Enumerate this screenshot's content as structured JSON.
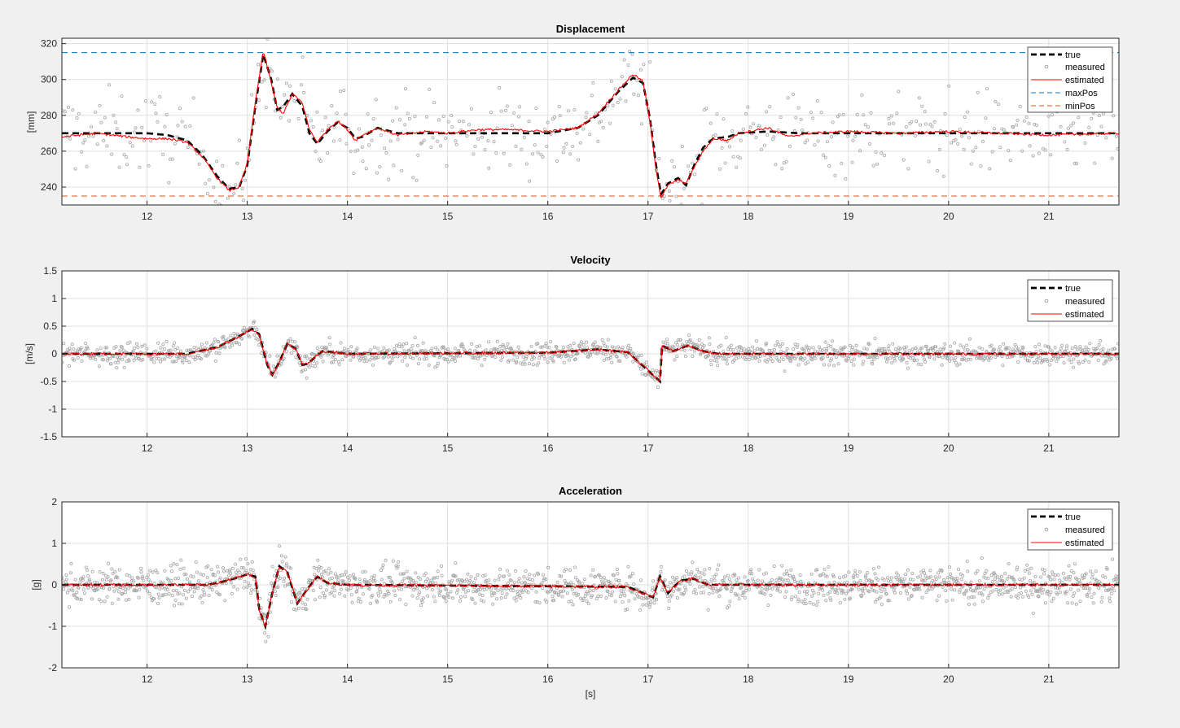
{
  "figure": {
    "background": "#f0f0f0",
    "xlabel": "[s]"
  },
  "colors": {
    "true": "#000000",
    "measured": "#a6a6a6",
    "estimated": "#ff0000",
    "maxPos": "#0072bd",
    "minPos": "#d95319",
    "grid": "#dfdfdf",
    "axes_bg": "#ffffff"
  },
  "chart_data": [
    {
      "type": "line",
      "title": "Displacement",
      "ylabel": "[mm]",
      "xlabel": "",
      "xlim": [
        11.15,
        21.7
      ],
      "ylim": [
        230,
        323
      ],
      "xticks": [
        12,
        13,
        14,
        15,
        16,
        17,
        18,
        19,
        20,
        21
      ],
      "yticks": [
        240,
        260,
        280,
        300,
        320
      ],
      "grid": true,
      "legend": "top-right",
      "legend_entries": [
        "true",
        "measured",
        "estimated",
        "maxPos",
        "minPos"
      ],
      "series": [
        {
          "name": "true",
          "style": "dashed",
          "color": "#000000",
          "points": [
            [
              11.15,
              270
            ],
            [
              12.0,
              270
            ],
            [
              12.2,
              269
            ],
            [
              12.4,
              266
            ],
            [
              12.55,
              258
            ],
            [
              12.7,
              246
            ],
            [
              12.82,
              239
            ],
            [
              12.92,
              240
            ],
            [
              13.0,
              252
            ],
            [
              13.08,
              285
            ],
            [
              13.16,
              314
            ],
            [
              13.24,
              300
            ],
            [
              13.3,
              283
            ],
            [
              13.36,
              285
            ],
            [
              13.45,
              292
            ],
            [
              13.55,
              285
            ],
            [
              13.62,
              270
            ],
            [
              13.7,
              264
            ],
            [
              13.8,
              271
            ],
            [
              13.9,
              276
            ],
            [
              14.0,
              273
            ],
            [
              14.08,
              267
            ],
            [
              14.15,
              268
            ],
            [
              14.3,
              273
            ],
            [
              14.5,
              270
            ],
            [
              15.0,
              270
            ],
            [
              16.0,
              270
            ],
            [
              16.3,
              273
            ],
            [
              16.5,
              280
            ],
            [
              16.7,
              293
            ],
            [
              16.85,
              301
            ],
            [
              16.95,
              298
            ],
            [
              17.02,
              278
            ],
            [
              17.08,
              252
            ],
            [
              17.13,
              236
            ],
            [
              17.2,
              242
            ],
            [
              17.3,
              245
            ],
            [
              17.38,
              241
            ],
            [
              17.46,
              252
            ],
            [
              17.55,
              262
            ],
            [
              17.65,
              267
            ],
            [
              17.8,
              268
            ],
            [
              17.9,
              270
            ],
            [
              18.2,
              271
            ],
            [
              18.5,
              270
            ],
            [
              21.7,
              270
            ]
          ]
        },
        {
          "name": "estimated",
          "style": "solid",
          "color": "#ff0000",
          "points": [
            [
              11.15,
              268
            ],
            [
              11.5,
              270
            ],
            [
              11.8,
              268
            ],
            [
              12.0,
              267
            ],
            [
              12.2,
              267
            ],
            [
              12.4,
              265
            ],
            [
              12.55,
              257
            ],
            [
              12.7,
              245
            ],
            [
              12.82,
              238
            ],
            [
              12.92,
              240
            ],
            [
              13.0,
              253
            ],
            [
              13.08,
              287
            ],
            [
              13.16,
              316
            ],
            [
              13.24,
              298
            ],
            [
              13.3,
              284
            ],
            [
              13.36,
              281
            ],
            [
              13.45,
              292
            ],
            [
              13.55,
              287
            ],
            [
              13.62,
              272
            ],
            [
              13.7,
              265
            ],
            [
              13.8,
              272
            ],
            [
              13.9,
              277
            ],
            [
              14.0,
              272
            ],
            [
              14.08,
              266
            ],
            [
              14.15,
              269
            ],
            [
              14.3,
              273
            ],
            [
              14.5,
              269
            ],
            [
              14.8,
              271
            ],
            [
              15.0,
              270
            ],
            [
              15.3,
              272
            ],
            [
              15.6,
              272
            ],
            [
              16.0,
              271
            ],
            [
              16.3,
              273
            ],
            [
              16.5,
              281
            ],
            [
              16.7,
              294
            ],
            [
              16.85,
              303
            ],
            [
              16.95,
              299
            ],
            [
              17.02,
              276
            ],
            [
              17.08,
              250
            ],
            [
              17.13,
              234
            ],
            [
              17.2,
              241
            ],
            [
              17.3,
              244
            ],
            [
              17.38,
              242
            ],
            [
              17.46,
              251
            ],
            [
              17.55,
              260
            ],
            [
              17.65,
              267
            ],
            [
              17.8,
              266
            ],
            [
              17.9,
              270
            ],
            [
              18.2,
              273
            ],
            [
              18.4,
              268
            ],
            [
              18.6,
              270
            ],
            [
              19.0,
              271
            ],
            [
              19.5,
              270
            ],
            [
              20.0,
              271
            ],
            [
              20.5,
              270
            ],
            [
              21.0,
              269
            ],
            [
              21.7,
              270
            ]
          ]
        },
        {
          "name": "maxPos",
          "style": "dashed",
          "color": "#0072bd",
          "points": [
            [
              11.15,
              315
            ],
            [
              21.7,
              315
            ]
          ]
        },
        {
          "name": "minPos",
          "style": "dashed",
          "color": "#d95319",
          "points": [
            [
              11.15,
              235
            ],
            [
              21.7,
              235
            ]
          ]
        },
        {
          "name": "measured",
          "style": "markers",
          "color": "#a6a6a6",
          "noise": 12,
          "count": 520
        }
      ]
    },
    {
      "type": "line",
      "title": "Velocity",
      "ylabel": "[m/s]",
      "xlabel": "",
      "xlim": [
        11.15,
        21.7
      ],
      "ylim": [
        -1.5,
        1.5
      ],
      "xticks": [
        12,
        13,
        14,
        15,
        16,
        17,
        18,
        19,
        20,
        21
      ],
      "yticks": [
        -1.5,
        -1,
        -0.5,
        0,
        0.5,
        1,
        1.5
      ],
      "grid": true,
      "legend": "top-right",
      "legend_entries": [
        "true",
        "measured",
        "estimated"
      ],
      "series": [
        {
          "name": "true",
          "style": "dashed",
          "color": "#000000",
          "points": [
            [
              11.15,
              0
            ],
            [
              12.4,
              0
            ],
            [
              12.7,
              0.12
            ],
            [
              12.9,
              0.3
            ],
            [
              13.05,
              0.45
            ],
            [
              13.12,
              0.35
            ],
            [
              13.2,
              -0.2
            ],
            [
              13.25,
              -0.38
            ],
            [
              13.32,
              -0.15
            ],
            [
              13.4,
              0.18
            ],
            [
              13.48,
              0.1
            ],
            [
              13.55,
              -0.2
            ],
            [
              13.6,
              -0.18
            ],
            [
              13.75,
              0.05
            ],
            [
              14.0,
              0
            ],
            [
              16.0,
              0.02
            ],
            [
              16.5,
              0.08
            ],
            [
              16.8,
              0.03
            ],
            [
              17.0,
              -0.3
            ],
            [
              17.12,
              -0.5
            ],
            [
              17.14,
              0.15
            ],
            [
              17.25,
              0.05
            ],
            [
              17.4,
              0.15
            ],
            [
              17.55,
              0.05
            ],
            [
              17.7,
              0
            ],
            [
              21.7,
              0
            ]
          ]
        },
        {
          "name": "estimated",
          "style": "solid",
          "color": "#ff0000",
          "points": [
            [
              11.15,
              0
            ],
            [
              12.4,
              0
            ],
            [
              12.7,
              0.12
            ],
            [
              12.9,
              0.3
            ],
            [
              13.05,
              0.45
            ],
            [
              13.12,
              0.35
            ],
            [
              13.2,
              -0.2
            ],
            [
              13.25,
              -0.38
            ],
            [
              13.32,
              -0.15
            ],
            [
              13.4,
              0.18
            ],
            [
              13.48,
              0.1
            ],
            [
              13.55,
              -0.2
            ],
            [
              13.6,
              -0.18
            ],
            [
              13.75,
              0.05
            ],
            [
              14.0,
              0
            ],
            [
              16.0,
              0.02
            ],
            [
              16.5,
              0.08
            ],
            [
              16.8,
              0.03
            ],
            [
              17.0,
              -0.3
            ],
            [
              17.12,
              -0.5
            ],
            [
              17.14,
              0.15
            ],
            [
              17.25,
              0.05
            ],
            [
              17.4,
              0.15
            ],
            [
              17.55,
              0.05
            ],
            [
              17.7,
              0
            ],
            [
              21.7,
              0
            ]
          ]
        },
        {
          "name": "measured",
          "style": "markers",
          "color": "#a6a6a6",
          "noise": 0.1,
          "count": 1400
        }
      ]
    },
    {
      "type": "line",
      "title": "Acceleration",
      "ylabel": "[g]",
      "xlabel": "[s]",
      "xlim": [
        11.15,
        21.7
      ],
      "ylim": [
        -2,
        2
      ],
      "xticks": [
        12,
        13,
        14,
        15,
        16,
        17,
        18,
        19,
        20,
        21
      ],
      "yticks": [
        -2,
        -1,
        0,
        1,
        2
      ],
      "grid": true,
      "legend": "top-right",
      "legend_entries": [
        "true",
        "measured",
        "estimated"
      ],
      "series": [
        {
          "name": "true",
          "style": "dashed",
          "color": "#000000",
          "points": [
            [
              11.15,
              0
            ],
            [
              12.6,
              0
            ],
            [
              12.8,
              0.1
            ],
            [
              13.0,
              0.25
            ],
            [
              13.08,
              0.2
            ],
            [
              13.12,
              -0.6
            ],
            [
              13.18,
              -1.0
            ],
            [
              13.25,
              -0.2
            ],
            [
              13.32,
              0.45
            ],
            [
              13.4,
              0.3
            ],
            [
              13.5,
              -0.45
            ],
            [
              13.6,
              -0.1
            ],
            [
              13.7,
              0.2
            ],
            [
              13.8,
              0.05
            ],
            [
              14.0,
              0
            ],
            [
              16.8,
              -0.05
            ],
            [
              17.05,
              -0.3
            ],
            [
              17.12,
              0.2
            ],
            [
              17.2,
              -0.2
            ],
            [
              17.32,
              0.1
            ],
            [
              17.45,
              0.15
            ],
            [
              17.6,
              0
            ],
            [
              21.7,
              0
            ]
          ]
        },
        {
          "name": "estimated",
          "style": "solid",
          "color": "#ff0000",
          "points": [
            [
              11.15,
              0
            ],
            [
              12.6,
              0
            ],
            [
              12.8,
              0.1
            ],
            [
              13.0,
              0.25
            ],
            [
              13.08,
              0.2
            ],
            [
              13.12,
              -0.6
            ],
            [
              13.18,
              -1.0
            ],
            [
              13.25,
              -0.2
            ],
            [
              13.32,
              0.45
            ],
            [
              13.4,
              0.3
            ],
            [
              13.5,
              -0.45
            ],
            [
              13.6,
              -0.1
            ],
            [
              13.7,
              0.2
            ],
            [
              13.8,
              0.05
            ],
            [
              14.0,
              0
            ],
            [
              16.8,
              -0.05
            ],
            [
              17.05,
              -0.3
            ],
            [
              17.12,
              0.2
            ],
            [
              17.2,
              -0.2
            ],
            [
              17.32,
              0.1
            ],
            [
              17.45,
              0.15
            ],
            [
              17.6,
              0
            ],
            [
              21.7,
              0
            ]
          ]
        },
        {
          "name": "measured",
          "style": "markers",
          "color": "#a6a6a6",
          "noise": 0.22,
          "count": 1600
        }
      ]
    }
  ]
}
